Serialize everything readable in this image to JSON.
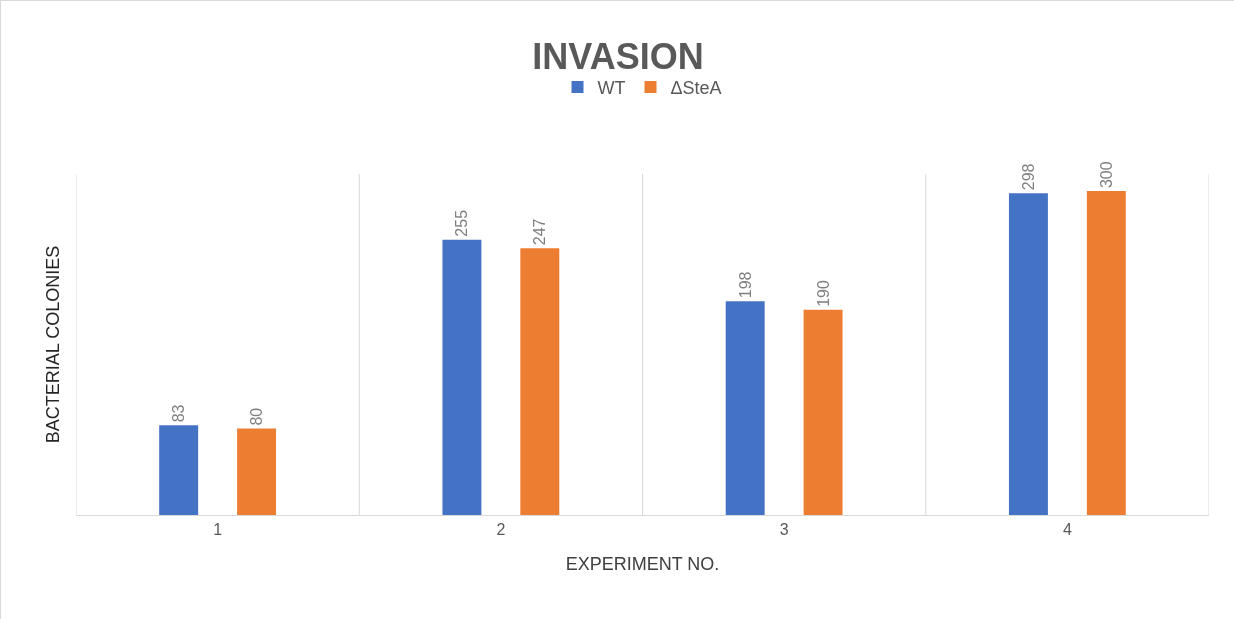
{
  "chart_data": {
    "type": "bar",
    "title": "INVASION",
    "xlabel": "EXPERIMENT NO.",
    "ylabel": "BACTERIAL COLONIES",
    "categories": [
      "1",
      "2",
      "3",
      "4"
    ],
    "series": [
      {
        "name": "WT",
        "color": "#4472c4",
        "values": [
          83,
          255,
          198,
          298
        ]
      },
      {
        "name": "ΔSteA",
        "color": "#ed7d31",
        "values": [
          80,
          247,
          190,
          300
        ]
      }
    ],
    "data_labels": true,
    "grid": "x",
    "legend": "top"
  }
}
